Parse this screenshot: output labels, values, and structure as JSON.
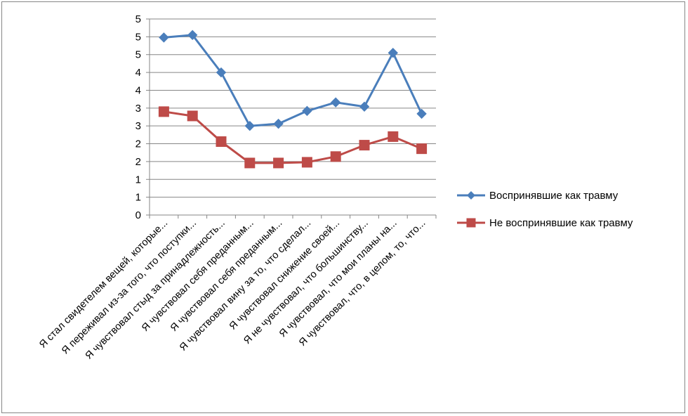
{
  "chart_data": {
    "type": "line",
    "title": "",
    "xlabel": "",
    "ylabel": "",
    "ylim": [
      0,
      5.5
    ],
    "y_tick_labels": [
      "0",
      "1",
      "1",
      "2",
      "2",
      "3",
      "3",
      "4",
      "4",
      "5",
      "5",
      "5"
    ],
    "categories": [
      "Я стал свидетелем вещей, которые...",
      "Я переживал из-за того, что поступки...",
      "Я чувствовал стыд за принадлежность...",
      "Я чувствовал себя преданным...",
      "Я чувствовал себя преданным...",
      "Я чувствовал вину за то, что сделал...",
      "Я чувствовал снижение своей...",
      "Я не чувствовал, что большинству...",
      "Я чувствовал, что мои планы на...",
      "Я чувствовал, что, в целом, то, что..."
    ],
    "series": [
      {
        "name": "Воспринявшие как травму",
        "color": "#4a7ebb",
        "marker": "diamond",
        "values": [
          4.98,
          5.05,
          4.0,
          2.5,
          2.56,
          2.92,
          3.16,
          3.04,
          4.55,
          2.84
        ]
      },
      {
        "name": "Не воспринявшие как травму",
        "color": "#be4b48",
        "marker": "square",
        "values": [
          2.9,
          2.78,
          2.06,
          1.46,
          1.46,
          1.48,
          1.64,
          1.96,
          2.2,
          1.86
        ]
      }
    ],
    "grid": true,
    "legend_position": "right"
  }
}
